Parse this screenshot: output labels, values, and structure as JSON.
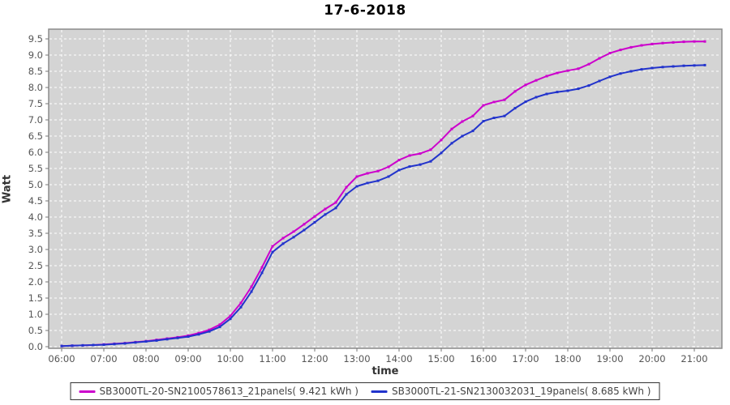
{
  "title": "17-6-2018",
  "chart_data": {
    "type": "line",
    "title": "17-6-2018",
    "xlabel": "time",
    "ylabel": "Watt",
    "x_tick_labels": [
      "06:00",
      "07:00",
      "08:00",
      "09:00",
      "10:00",
      "11:00",
      "12:00",
      "13:00",
      "14:00",
      "15:00",
      "16:00",
      "17:00",
      "18:00",
      "19:00",
      "20:00",
      "21:00"
    ],
    "y_tick_labels": [
      "0.0",
      "0.5",
      "1.0",
      "1.5",
      "2.0",
      "2.5",
      "3.0",
      "3.5",
      "4.0",
      "4.5",
      "5.0",
      "5.5",
      "6.0",
      "6.5",
      "7.0",
      "7.5",
      "8.0",
      "8.5",
      "9.0",
      "9.5"
    ],
    "ylim": [
      0,
      9.5
    ],
    "xlim": [
      "06:00",
      "21:00"
    ],
    "grid": "white dashed on gray plot background",
    "legend_position": "bottom-center",
    "plot_background": "#d4d4d4",
    "grid_color": "#ffffff",
    "x": [
      "06:00",
      "06:15",
      "06:30",
      "06:45",
      "07:00",
      "07:15",
      "07:30",
      "07:45",
      "08:00",
      "08:15",
      "08:30",
      "08:45",
      "09:00",
      "09:15",
      "09:30",
      "09:45",
      "10:00",
      "10:15",
      "10:30",
      "10:45",
      "11:00",
      "11:15",
      "11:30",
      "11:45",
      "12:00",
      "12:15",
      "12:30",
      "12:45",
      "13:00",
      "13:15",
      "13:30",
      "13:45",
      "14:00",
      "14:15",
      "14:30",
      "14:45",
      "15:00",
      "15:15",
      "15:30",
      "15:45",
      "16:00",
      "16:15",
      "16:30",
      "16:45",
      "17:00",
      "17:15",
      "17:30",
      "17:45",
      "18:00",
      "18:15",
      "18:30",
      "18:45",
      "19:00",
      "19:15",
      "19:30",
      "19:45",
      "20:00",
      "20:15",
      "20:30",
      "20:45",
      "21:00",
      "21:15"
    ],
    "series": [
      {
        "name": "SB3000TL-20-SN2100578613_21panels( 9.421 kWh )",
        "color": "#cc00cc",
        "total_kwh": 9.421,
        "values": [
          0.02,
          0.03,
          0.04,
          0.05,
          0.07,
          0.09,
          0.11,
          0.14,
          0.17,
          0.21,
          0.25,
          0.29,
          0.34,
          0.42,
          0.52,
          0.68,
          0.95,
          1.35,
          1.85,
          2.45,
          3.1,
          3.35,
          3.55,
          3.78,
          4.02,
          4.25,
          4.45,
          4.92,
          5.25,
          5.35,
          5.42,
          5.55,
          5.76,
          5.9,
          5.96,
          6.08,
          6.38,
          6.72,
          6.95,
          7.12,
          7.45,
          7.55,
          7.62,
          7.88,
          8.08,
          8.22,
          8.35,
          8.45,
          8.52,
          8.58,
          8.72,
          8.9,
          9.06,
          9.16,
          9.24,
          9.3,
          9.34,
          9.37,
          9.39,
          9.41,
          9.42,
          9.42
        ]
      },
      {
        "name": "SB3000TL-21-SN2130032031_19panels( 8.685 kWh )",
        "color": "#2233cc",
        "total_kwh": 8.685,
        "values": [
          0.02,
          0.03,
          0.04,
          0.05,
          0.06,
          0.08,
          0.1,
          0.13,
          0.16,
          0.19,
          0.23,
          0.27,
          0.31,
          0.38,
          0.47,
          0.61,
          0.86,
          1.22,
          1.7,
          2.28,
          2.92,
          3.18,
          3.38,
          3.6,
          3.84,
          4.08,
          4.28,
          4.7,
          4.95,
          5.05,
          5.12,
          5.25,
          5.45,
          5.56,
          5.62,
          5.72,
          5.98,
          6.28,
          6.5,
          6.66,
          6.96,
          7.06,
          7.12,
          7.36,
          7.56,
          7.7,
          7.8,
          7.86,
          7.9,
          7.96,
          8.06,
          8.2,
          8.33,
          8.43,
          8.5,
          8.56,
          8.6,
          8.63,
          8.65,
          8.67,
          8.68,
          8.69
        ]
      }
    ]
  }
}
